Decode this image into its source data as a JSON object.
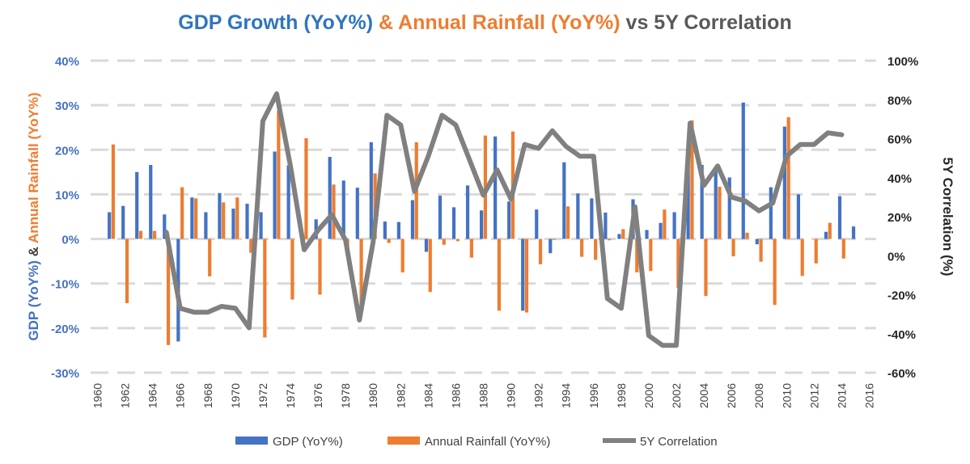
{
  "title": {
    "part1": "GDP Growth (YoY%)",
    "part2": " & Annual Rainfall (YoY%)",
    "part3": " vs 5Y Correlation"
  },
  "colors": {
    "gdp": "#4472c4",
    "rain": "#ed7d31",
    "corr": "#808080",
    "dark": "#404040"
  },
  "chart_data": {
    "type": "bar+line",
    "title": "GDP Growth (YoY%) & Annual Rainfall (YoY%) vs 5Y Correlation",
    "y_left": {
      "label_parts": [
        "GDP (YoY%)",
        " & ",
        "Annual Rainfall (YoY%)"
      ],
      "lim": [
        -30,
        40
      ],
      "ticks": [
        "-30%",
        "-20%",
        "-10%",
        "0%",
        "10%",
        "20%",
        "30%",
        "40%"
      ]
    },
    "y_right": {
      "label": "5Y Correlation (%)",
      "lim": [
        -60,
        100
      ],
      "ticks": [
        "-60%",
        "-40%",
        "-20%",
        "0%",
        "20%",
        "40%",
        "60%",
        "80%",
        "100%"
      ]
    },
    "x_tick_labels": [
      "1960",
      "1962",
      "1964",
      "1966",
      "1968",
      "1970",
      "1972",
      "1974",
      "1976",
      "1978",
      "1980",
      "1982",
      "1984",
      "1986",
      "1988",
      "1990",
      "1992",
      "1994",
      "1996",
      "1998",
      "2000",
      "2002",
      "2004",
      "2006",
      "2008",
      "2010",
      "2012",
      "2014",
      "2016"
    ],
    "gridlines": true,
    "legend": "bottom",
    "years": [
      1961,
      1962,
      1963,
      1964,
      1965,
      1966,
      1967,
      1968,
      1969,
      1970,
      1971,
      1972,
      1973,
      1974,
      1975,
      1976,
      1977,
      1978,
      1979,
      1980,
      1981,
      1982,
      1983,
      1984,
      1985,
      1986,
      1987,
      1988,
      1989,
      1990,
      1991,
      1992,
      1993,
      1994,
      1995,
      1996,
      1997,
      1998,
      1999,
      2000,
      2001,
      2002,
      2003,
      2004,
      2005,
      2006,
      2007,
      2008,
      2009,
      2010,
      2011,
      2012,
      2013,
      2014,
      2015
    ],
    "series": [
      {
        "name": "GDP (YoY%)",
        "type": "bar",
        "axis": "left",
        "values": [
          6.0,
          7.4,
          15.0,
          16.6,
          5.5,
          -23.0,
          9.3,
          6.0,
          10.3,
          6.8,
          7.9,
          6.0,
          19.6,
          16.5,
          -1.1,
          4.4,
          18.4,
          13.1,
          11.5,
          21.7,
          3.9,
          3.8,
          8.7,
          -2.9,
          9.7,
          7.1,
          12.0,
          6.4,
          23.0,
          8.4,
          -16.1,
          6.6,
          -3.2,
          17.2,
          10.2,
          9.1,
          5.9,
          1.1,
          8.9,
          2.0,
          3.6,
          6.0,
          18.0,
          16.6,
          15.6,
          13.8,
          30.6,
          -1.2,
          11.6,
          25.2,
          10.0,
          0.0,
          1.6,
          9.6,
          2.8
        ]
      },
      {
        "name": "Annual Rainfall (YoY%)",
        "type": "bar",
        "axis": "left",
        "values": [
          21.2,
          -14.4,
          1.8,
          1.8,
          -23.8,
          11.6,
          9.1,
          -8.4,
          8.2,
          9.3,
          -3.1,
          -22.1,
          28.8,
          -13.6,
          22.6,
          -12.5,
          12.2,
          -2.3,
          -16.5,
          14.7,
          -0.9,
          -7.5,
          21.7,
          -11.9,
          -1.3,
          -0.5,
          -4.2,
          23.2,
          -16.1,
          24.1,
          -16.5,
          -5.7,
          -0.2,
          7.3,
          -4.0,
          -4.7,
          -0.3,
          2.2,
          -7.5,
          -7.2,
          6.6,
          -11.0,
          26.6,
          -12.8,
          11.7,
          -3.9,
          1.4,
          -5.1,
          -14.8,
          27.3,
          -8.3,
          -5.5,
          3.6,
          -4.4,
          0.0
        ]
      },
      {
        "name": "5Y Correlation",
        "type": "line",
        "axis": "right",
        "values": [
          null,
          null,
          null,
          null,
          12,
          -27,
          -29,
          -29,
          -26,
          -27,
          -37,
          69,
          83,
          46,
          3,
          13,
          21,
          8,
          -33,
          7,
          72,
          67,
          33,
          51,
          72,
          67,
          49,
          31,
          44,
          29,
          57,
          55,
          64,
          56,
          51,
          51,
          -22,
          -27,
          25,
          -41,
          -46,
          -46,
          68,
          36,
          46,
          30,
          28,
          23,
          27,
          51,
          57,
          57,
          63,
          62,
          null
        ]
      }
    ]
  },
  "legend": {
    "gdp_label": "GDP (YoY%)",
    "rain_label": "Annual Rainfall (YoY%)",
    "corr_label": "5Y Correlation"
  }
}
